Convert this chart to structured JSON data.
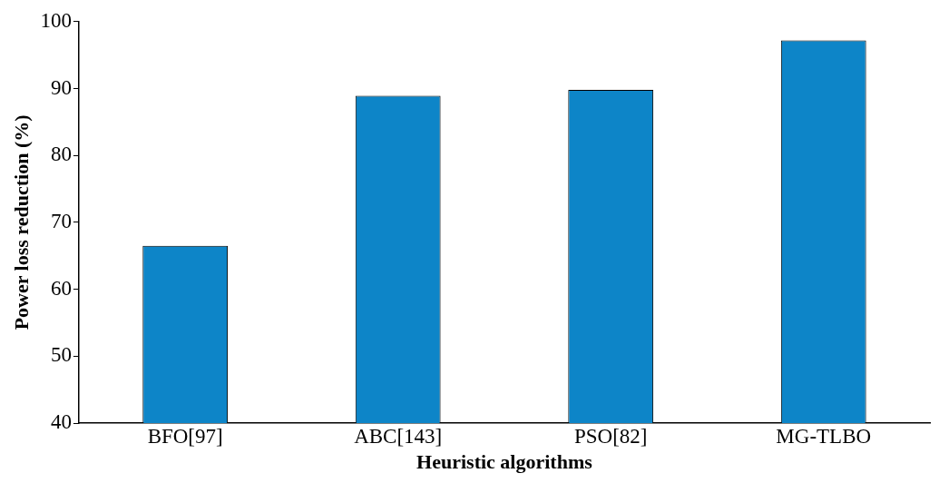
{
  "chart_data": {
    "type": "bar",
    "xlabel": "Heuristic algorithms",
    "ylabel": "Power loss reduction (%)",
    "categories": [
      "BFO[97]",
      "ABC[143]",
      "PSO[82]",
      "MG-TLBO"
    ],
    "values": [
      66.5,
      88.9,
      89.8,
      97.2
    ],
    "color": "#0d85c8",
    "ylim": [
      40,
      100
    ],
    "yticks": [
      40,
      50,
      60,
      70,
      80,
      90,
      100
    ],
    "grid": false,
    "legend": false
  }
}
